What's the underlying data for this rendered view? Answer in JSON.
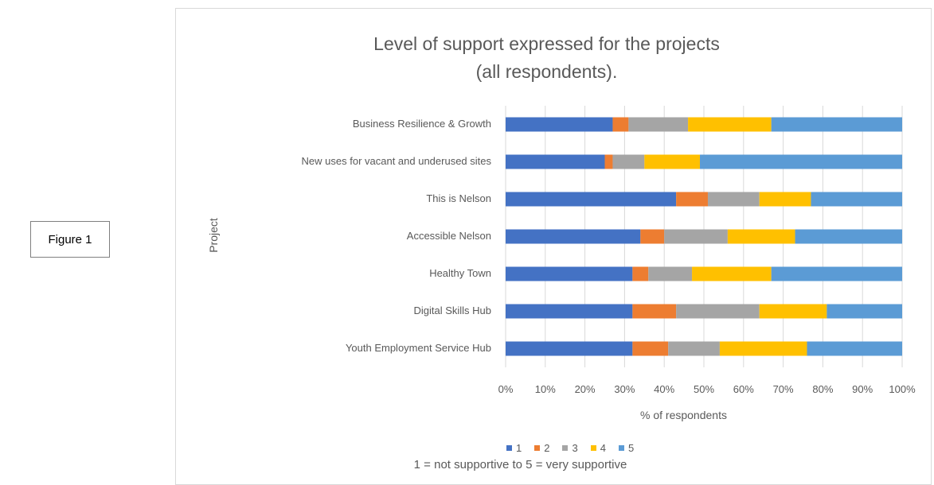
{
  "figure_label": "Figure 1",
  "chart_data": {
    "type": "bar",
    "orientation": "horizontal",
    "stacked": "percent",
    "title_line1": "Level of support expressed for the projects",
    "title_line2": "(all respondents).",
    "xlabel": "% of respondents",
    "ylabel": "Project",
    "xlim": [
      0,
      100
    ],
    "x_ticks": [
      "0%",
      "10%",
      "20%",
      "30%",
      "40%",
      "50%",
      "60%",
      "70%",
      "80%",
      "90%",
      "100%"
    ],
    "grid": true,
    "legend_position": "bottom",
    "legend_note": "1 = not supportive to 5 = very supportive",
    "categories": [
      "Business Resilience & Growth",
      "New uses for vacant and underused sites",
      "This is Nelson",
      "Accessible Nelson",
      "Healthy Town",
      "Digital Skills Hub",
      "Youth Employment Service Hub"
    ],
    "series": [
      {
        "name": "1",
        "color": "#4472c4",
        "values": [
          27,
          25,
          43,
          34,
          32,
          32,
          32
        ]
      },
      {
        "name": "2",
        "color": "#ed7d31",
        "values": [
          4,
          2,
          8,
          6,
          4,
          11,
          9
        ]
      },
      {
        "name": "3",
        "color": "#a5a5a5",
        "values": [
          15,
          8,
          13,
          16,
          11,
          21,
          13
        ]
      },
      {
        "name": "4",
        "color": "#ffc000",
        "values": [
          21,
          14,
          13,
          17,
          20,
          17,
          22
        ]
      },
      {
        "name": "5",
        "color": "#5b9bd5",
        "values": [
          33,
          51,
          23,
          27,
          33,
          19,
          24
        ]
      }
    ]
  }
}
